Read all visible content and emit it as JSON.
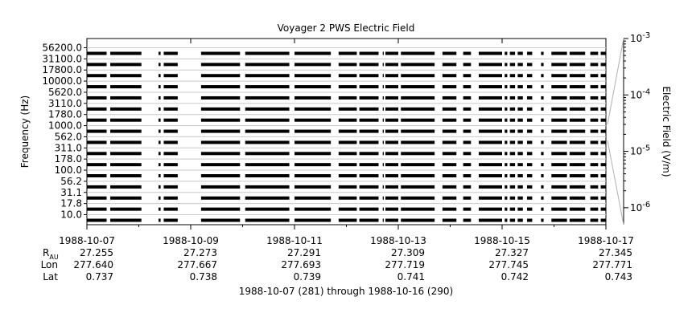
{
  "chart_data": {
    "type": "spectrogram",
    "title": "Voyager 2 PWS Electric Field",
    "ylabel": "Frequency (Hz)",
    "y_tick_labels": [
      "56200.0",
      "31100.0",
      "17800.0",
      "10000.0",
      "5620.0",
      "3110.0",
      "1780.0",
      "1000.0",
      "562.0",
      "311.0",
      "178.0",
      "100.0",
      "56.2",
      "31.1",
      "17.8",
      "10.0"
    ],
    "colorbar": {
      "label": "Electric Field (V/m)",
      "scale": "log",
      "range": [
        5e-07,
        0.001
      ],
      "ticks": [
        {
          "value": 0.001,
          "base": "10",
          "exp": "-3"
        },
        {
          "value": 0.0001,
          "base": "10",
          "exp": "-4"
        },
        {
          "value": 1e-05,
          "base": "10",
          "exp": "-5"
        },
        {
          "value": 1e-06,
          "base": "10",
          "exp": "-6"
        }
      ]
    },
    "x_axis": {
      "start_day": 0,
      "end_day": 10,
      "ticks": [
        {
          "day": 0,
          "date": "1988-10-07",
          "r_au": "27.255",
          "lon": "277.640",
          "lat": "0.737"
        },
        {
          "day": 2,
          "date": "1988-10-09",
          "r_au": "27.273",
          "lon": "277.667",
          "lat": "0.738"
        },
        {
          "day": 4,
          "date": "1988-10-11",
          "r_au": "27.291",
          "lon": "277.693",
          "lat": "0.739"
        },
        {
          "day": 6,
          "date": "1988-10-13",
          "r_au": "27.309",
          "lon": "277.719",
          "lat": "0.741"
        },
        {
          "day": 8,
          "date": "1988-10-15",
          "r_au": "27.327",
          "lon": "277.745",
          "lat": "0.742"
        },
        {
          "day": 10,
          "date": "1988-10-17",
          "r_au": "27.345",
          "lon": "277.771",
          "lat": "0.743"
        }
      ],
      "minor_tick_days": [
        1,
        3,
        5,
        7,
        9
      ]
    },
    "row_labels": {
      "r_au": "R",
      "r_au_sub": "AU",
      "lon": "Lon",
      "lat": "Lat"
    },
    "xlabel": "1988-10-07 (281) through 1988-10-16 (290)",
    "data_segments_days": [
      [
        0.0,
        0.38
      ],
      [
        0.45,
        1.05
      ],
      [
        1.38,
        1.42
      ],
      [
        1.48,
        1.75
      ],
      [
        2.2,
        2.95
      ],
      [
        3.05,
        3.9
      ],
      [
        4.0,
        4.7
      ],
      [
        4.85,
        5.2
      ],
      [
        5.25,
        5.62
      ],
      [
        5.7,
        5.72
      ],
      [
        5.75,
        6.0
      ],
      [
        6.05,
        6.7
      ],
      [
        6.85,
        7.12
      ],
      [
        7.25,
        7.4
      ],
      [
        7.55,
        8.0
      ],
      [
        8.05,
        8.1
      ],
      [
        8.15,
        8.25
      ],
      [
        8.3,
        8.4
      ],
      [
        8.48,
        8.58
      ],
      [
        8.75,
        8.8
      ],
      [
        8.95,
        9.25
      ],
      [
        9.3,
        9.6
      ],
      [
        9.7,
        9.85
      ],
      [
        9.9,
        10.0
      ]
    ]
  }
}
